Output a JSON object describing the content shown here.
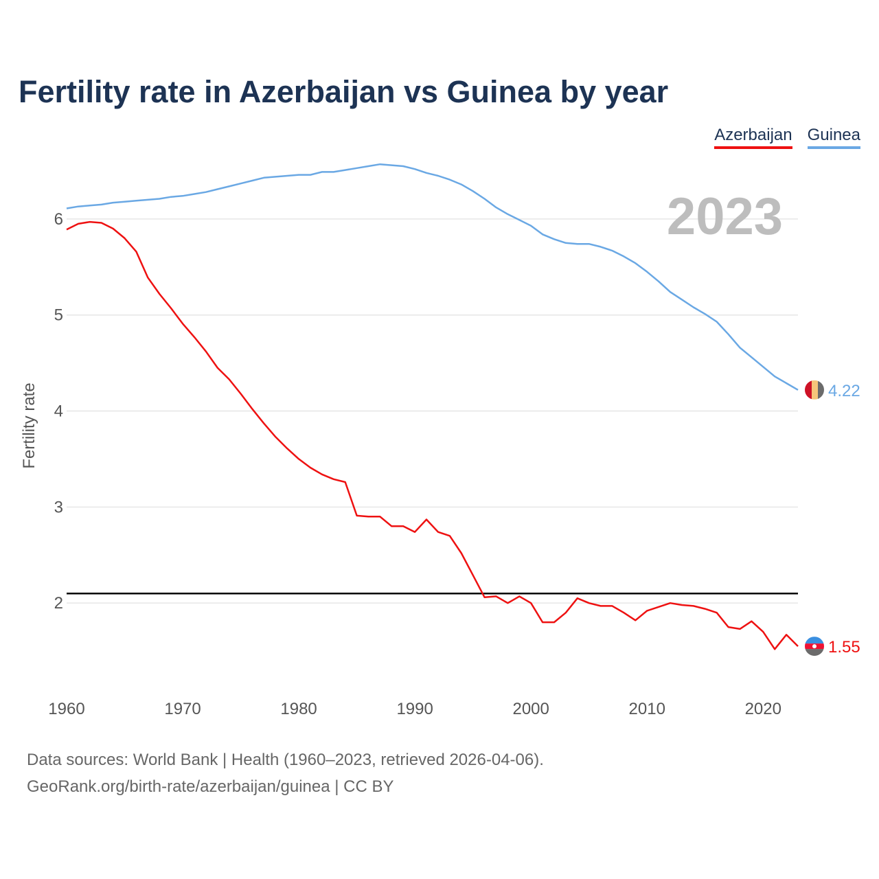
{
  "header": {
    "title": "Fertility rate in Azerbaijan vs Guinea by year"
  },
  "legend": [
    {
      "label": "Azerbaijan",
      "color": "#ee1111"
    },
    {
      "label": "Guinea",
      "color": "#6aa8e4"
    }
  ],
  "chart_data": {
    "type": "line",
    "title": "Fertility rate in Azerbaijan vs Guinea by year",
    "xlabel": "",
    "ylabel": "Fertility rate",
    "year_label": "2023",
    "xlim": [
      1960,
      2023
    ],
    "ylim": [
      1.0,
      6.6
    ],
    "x_ticks": [
      1960,
      1970,
      1980,
      1990,
      2000,
      2010,
      2020
    ],
    "y_ticks": [
      2,
      3,
      4,
      5,
      6
    ],
    "reference_line": 2.1,
    "grid": true,
    "x": [
      1960,
      1961,
      1962,
      1963,
      1964,
      1965,
      1966,
      1967,
      1968,
      1969,
      1970,
      1971,
      1972,
      1973,
      1974,
      1975,
      1976,
      1977,
      1978,
      1979,
      1980,
      1981,
      1982,
      1983,
      1984,
      1985,
      1986,
      1987,
      1988,
      1989,
      1990,
      1991,
      1992,
      1993,
      1994,
      1995,
      1996,
      1997,
      1998,
      1999,
      2000,
      2001,
      2002,
      2003,
      2004,
      2005,
      2006,
      2007,
      2008,
      2009,
      2010,
      2011,
      2012,
      2013,
      2014,
      2015,
      2016,
      2017,
      2018,
      2019,
      2020,
      2021,
      2022,
      2023
    ],
    "series": [
      {
        "name": "Azerbaijan",
        "color": "#ee1111",
        "end_label": "1.55",
        "values": [
          5.89,
          5.95,
          5.97,
          5.96,
          5.9,
          5.8,
          5.66,
          5.39,
          5.22,
          5.07,
          4.91,
          4.77,
          4.62,
          4.45,
          4.33,
          4.18,
          4.02,
          3.87,
          3.73,
          3.61,
          3.5,
          3.41,
          3.34,
          3.29,
          3.26,
          2.91,
          2.9,
          2.9,
          2.8,
          2.8,
          2.74,
          2.87,
          2.74,
          2.7,
          2.52,
          2.29,
          2.06,
          2.07,
          2.0,
          2.07,
          2.0,
          1.8,
          1.8,
          1.9,
          2.05,
          2.0,
          1.97,
          1.97,
          1.9,
          1.82,
          1.92,
          1.96,
          2.0,
          1.98,
          1.97,
          1.94,
          1.9,
          1.75,
          1.73,
          1.81,
          1.7,
          1.52,
          1.67,
          1.55
        ]
      },
      {
        "name": "Guinea",
        "color": "#6aa8e4",
        "end_label": "4.22",
        "values": [
          6.11,
          6.13,
          6.14,
          6.15,
          6.17,
          6.18,
          6.19,
          6.2,
          6.21,
          6.23,
          6.24,
          6.26,
          6.28,
          6.31,
          6.34,
          6.37,
          6.4,
          6.43,
          6.44,
          6.45,
          6.46,
          6.46,
          6.49,
          6.49,
          6.51,
          6.53,
          6.55,
          6.57,
          6.56,
          6.55,
          6.52,
          6.48,
          6.45,
          6.41,
          6.36,
          6.29,
          6.21,
          6.12,
          6.05,
          5.99,
          5.93,
          5.84,
          5.79,
          5.75,
          5.74,
          5.74,
          5.71,
          5.67,
          5.61,
          5.54,
          5.45,
          5.35,
          5.24,
          5.16,
          5.08,
          5.01,
          4.93,
          4.8,
          4.66,
          4.56,
          4.46,
          4.36,
          4.29,
          4.22
        ]
      }
    ]
  },
  "footer": {
    "source": "Data sources: World Bank | Health (1960–2023, retrieved 2026-04-06).",
    "link": "GeoRank.org/birth-rate/azerbaijan/guinea | CC BY"
  }
}
